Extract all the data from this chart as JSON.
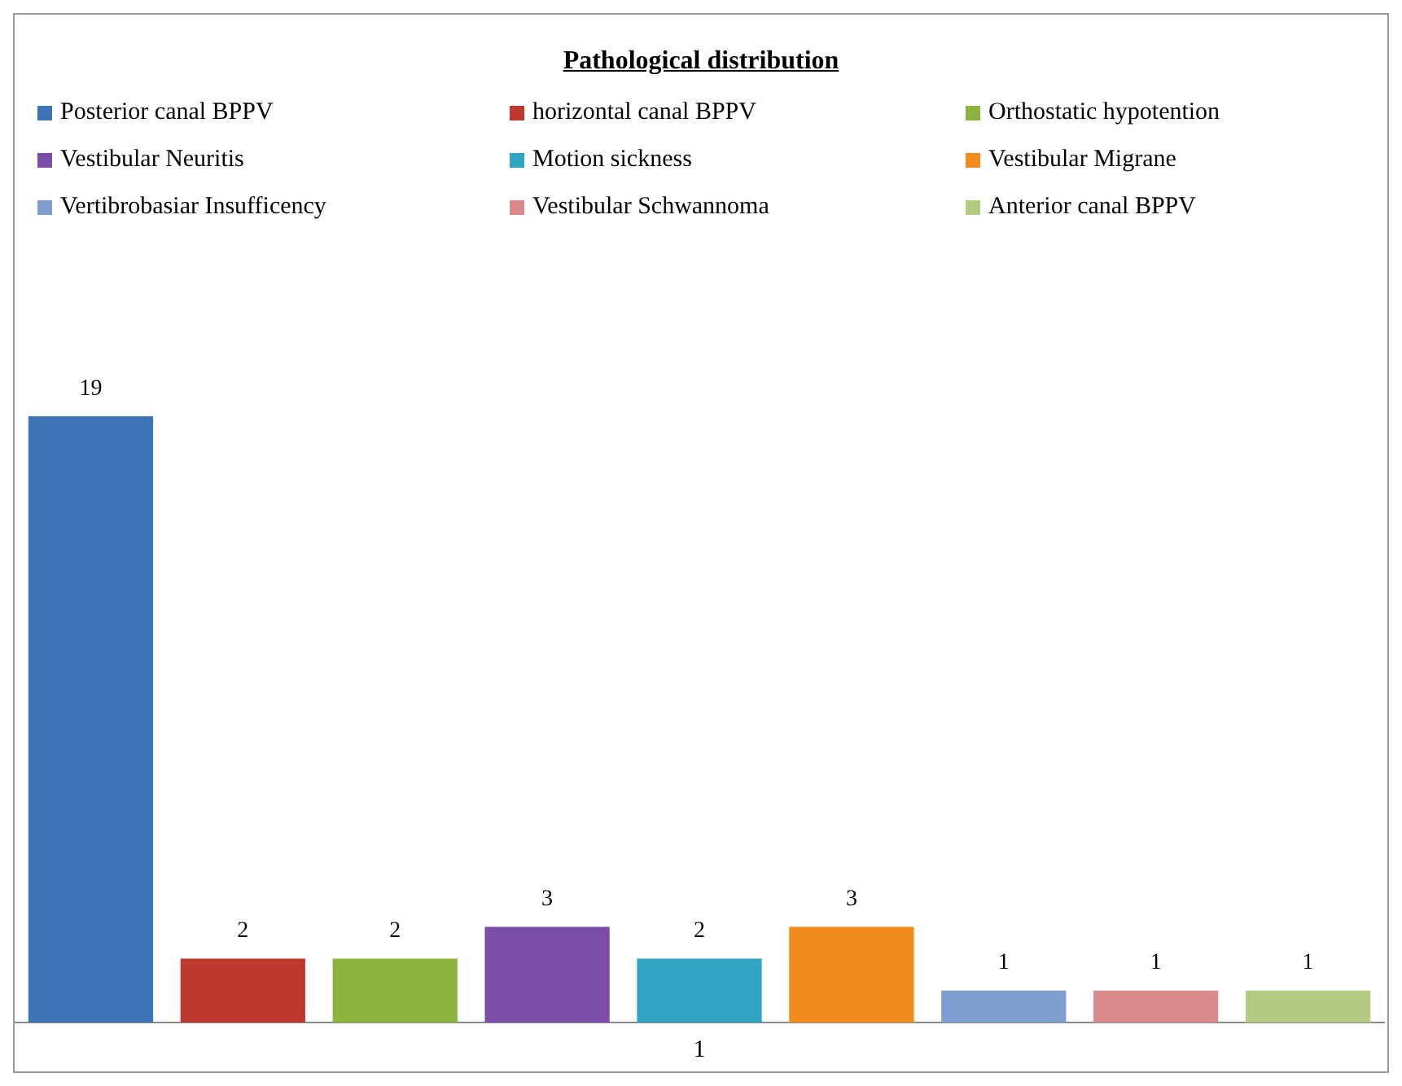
{
  "chart_data": {
    "type": "bar",
    "title": "Pathological distribution",
    "xlabel": "1",
    "categories": [
      null,
      null,
      null,
      null,
      null,
      null,
      null,
      null,
      null
    ],
    "series": [
      {
        "name": "Posterior canal BPPV",
        "color": "#3f73b8",
        "values": [
          19,
          null,
          null,
          null,
          null,
          null,
          null,
          null,
          null
        ]
      },
      {
        "name": "horizontal canal BPPV",
        "color": "#c0392f",
        "values": [
          null,
          2,
          null,
          null,
          null,
          null,
          null,
          null,
          null
        ]
      },
      {
        "name": "Orthostatic hypotention",
        "color": "#8db33f",
        "values": [
          null,
          null,
          2,
          null,
          null,
          null,
          null,
          null,
          null
        ]
      },
      {
        "name": "Vestibular Neuritis",
        "color": "#7a4ea6",
        "values": [
          null,
          null,
          null,
          3,
          null,
          null,
          null,
          null,
          null
        ]
      },
      {
        "name": "Motion sickness",
        "color": "#2fa5c3",
        "values": [
          null,
          null,
          null,
          null,
          2,
          null,
          null,
          null,
          null
        ]
      },
      {
        "name": "Vestibular Migrane",
        "color": "#f28a1e",
        "values": [
          null,
          null,
          null,
          null,
          null,
          3,
          null,
          null,
          null
        ]
      },
      {
        "name": "Vertibrobasiar Insufficency",
        "color": "#7f9fd0",
        "values": [
          null,
          null,
          null,
          null,
          null,
          null,
          1,
          null,
          null
        ]
      },
      {
        "name": "Vestibular Schwannoma",
        "color": "#d88a8a",
        "values": [
          null,
          null,
          null,
          null,
          null,
          null,
          null,
          1,
          null
        ]
      },
      {
        "name": "Anterior canal BPPV",
        "color": "#b4cc82",
        "values": [
          null,
          null,
          null,
          null,
          null,
          null,
          null,
          null,
          1
        ]
      }
    ],
    "stacked": true,
    "data_labels": true,
    "legend": "top",
    "grid": false
  }
}
